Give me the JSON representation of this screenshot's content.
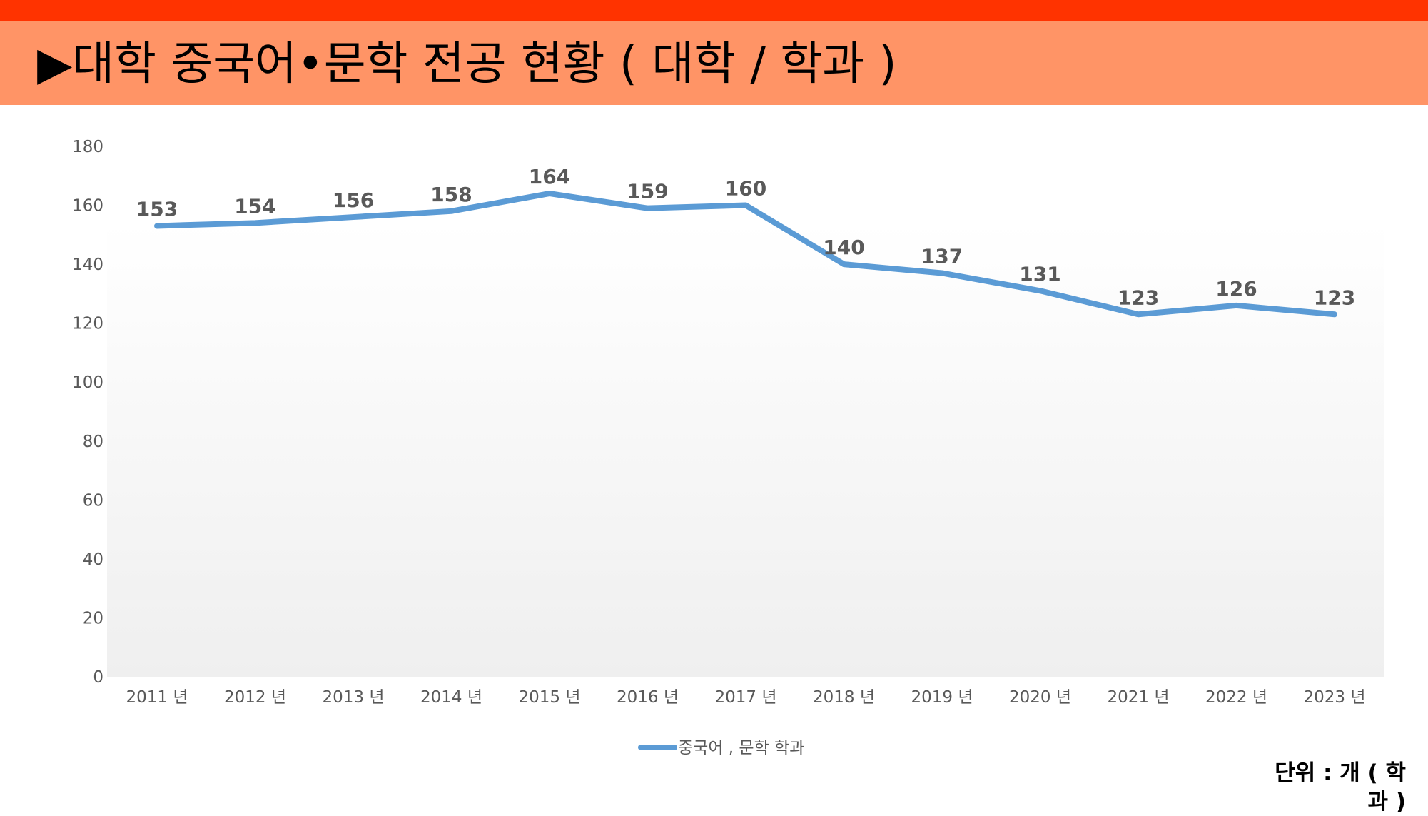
{
  "header": {
    "title": "▶대학 중국어•문학 전공 현황 ( 대학 / 학과 )",
    "accent_color": "#ff3300",
    "band_color": "#ff9466"
  },
  "chart_data": {
    "type": "line",
    "title": "",
    "xlabel": "",
    "ylabel": "",
    "categories": [
      "2011 년",
      "2012 년",
      "2013 년",
      "2014 년",
      "2015 년",
      "2016 년",
      "2017 년",
      "2018 년",
      "2019 년",
      "2020 년",
      "2021 년",
      "2022 년",
      "2023 년"
    ],
    "series": [
      {
        "name": "중국어 , 문학 학과",
        "color": "#5b9bd5",
        "values": [
          153,
          154,
          156,
          158,
          164,
          159,
          160,
          140,
          137,
          131,
          123,
          126,
          123
        ]
      }
    ],
    "ylim": [
      0,
      180
    ],
    "yticks": [
      0,
      20,
      40,
      60,
      80,
      100,
      120,
      140,
      160,
      180
    ],
    "grid": false,
    "legend_position": "bottom"
  },
  "unit_note": "단위 :  개 ( 학과 )"
}
